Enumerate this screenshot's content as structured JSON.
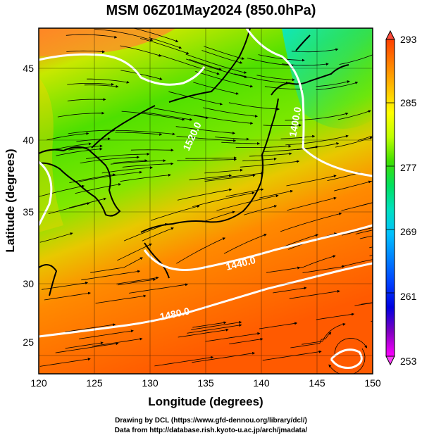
{
  "title": "MSM 06Z01May2024 (850.0hPa)",
  "map": {
    "xlabel": "Longitude (degrees)",
    "ylabel": "Latitude  (degrees)",
    "lon_range": [
      120,
      150
    ],
    "lat_range": [
      22.5,
      47.5
    ],
    "lon_ticks": [
      "120",
      "125",
      "130",
      "135",
      "140",
      "145",
      "150"
    ],
    "lat_ticks": [
      "25",
      "30",
      "35",
      "40",
      "45"
    ],
    "contour_labels": [
      "1440.0",
      "1480.0",
      "1520.0",
      "1400.0"
    ]
  },
  "colorbar": {
    "labels": [
      "293",
      "285",
      "277",
      "269",
      "261",
      "253"
    ],
    "colors": [
      "#ff4000",
      "#ff8000",
      "#ffbf00",
      "#ffff00",
      "#bfff00",
      "#40e000",
      "#00e060",
      "#00e0c0",
      "#00c0ff",
      "#0080ff",
      "#0040ff",
      "#0000e0",
      "#8000c0",
      "#ff00ff"
    ]
  },
  "credits": {
    "line1": "Drawing by DCL (https://www.gfd-dennou.org/library/dcl/)",
    "line2": "Data from http://database.rish.kyoto-u.ac.jp/arch/jmadata/"
  }
}
